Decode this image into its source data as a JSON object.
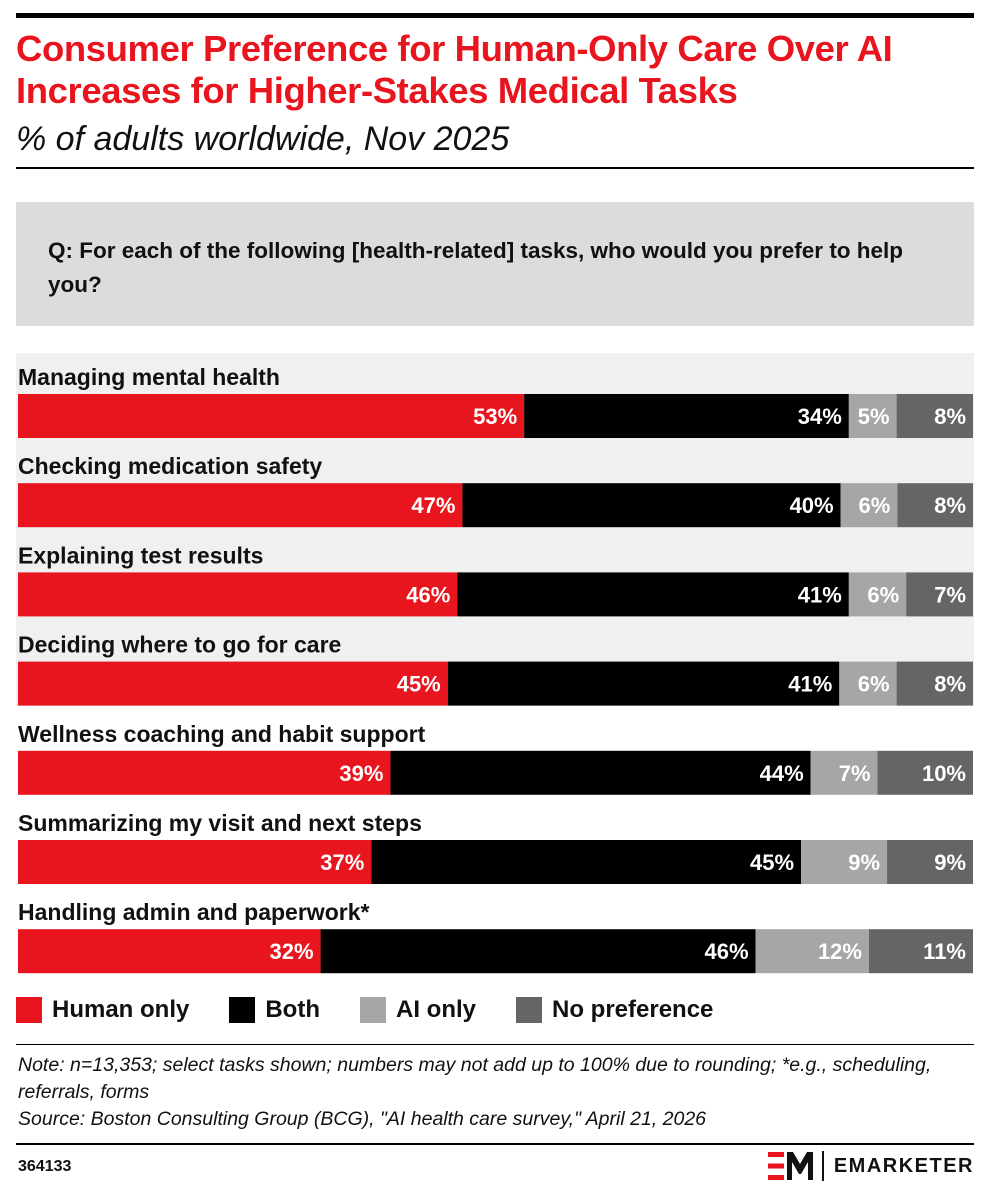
{
  "header": {
    "title": "Consumer Preference for Human-Only Care Over AI Increases for Higher-Stakes Medical Tasks",
    "subtitle": "% of adults worldwide, Nov 2025"
  },
  "question": "Q:  For each of the following [health-related] tasks, who would you prefer to help you?",
  "chart_data": {
    "type": "bar",
    "orientation": "horizontal",
    "stacked": true,
    "title": "Consumer Preference for Human-Only Care Over AI Increases for Higher-Stakes Medical Tasks",
    "subtitle": "% of adults worldwide, Nov 2025",
    "unit": "%",
    "categories": [
      "Managing mental health",
      "Checking medication safety",
      "Explaining test results",
      "Deciding where to go for care",
      "Wellness coaching and habit support",
      "Summarizing my visit and next steps",
      "Handling admin and paperwork*"
    ],
    "highlighted_categories": [
      0,
      1,
      2,
      3
    ],
    "series": [
      {
        "name": "Human only",
        "color": "#e8141e",
        "values": [
          53,
          47,
          46,
          45,
          39,
          37,
          32
        ]
      },
      {
        "name": "Both",
        "color": "#000000",
        "values": [
          34,
          40,
          41,
          41,
          44,
          45,
          46
        ]
      },
      {
        "name": "AI only",
        "color": "#a6a6a6",
        "values": [
          5,
          6,
          6,
          6,
          7,
          9,
          12
        ]
      },
      {
        "name": "No preference",
        "color": "#656565",
        "values": [
          8,
          8,
          7,
          8,
          10,
          9,
          11
        ]
      }
    ],
    "legend_position": "bottom-left",
    "grid": false
  },
  "legend": [
    {
      "label": "Human only",
      "color": "#e8141e"
    },
    {
      "label": "Both",
      "color": "#000000"
    },
    {
      "label": "AI only",
      "color": "#a6a6a6"
    },
    {
      "label": "No preference",
      "color": "#656565"
    }
  ],
  "notes": {
    "note": "Note: n=13,353; select tasks shown; numbers may not add up to 100% due to rounding; *e.g., scheduling, referrals, forms",
    "source": "Source: Boston Consulting Group (BCG), \"AI health care survey,\" April 21, 2026"
  },
  "footer": {
    "chart_id": "364133",
    "brand": "EMARKETER",
    "brand_color": "#e8141e"
  }
}
